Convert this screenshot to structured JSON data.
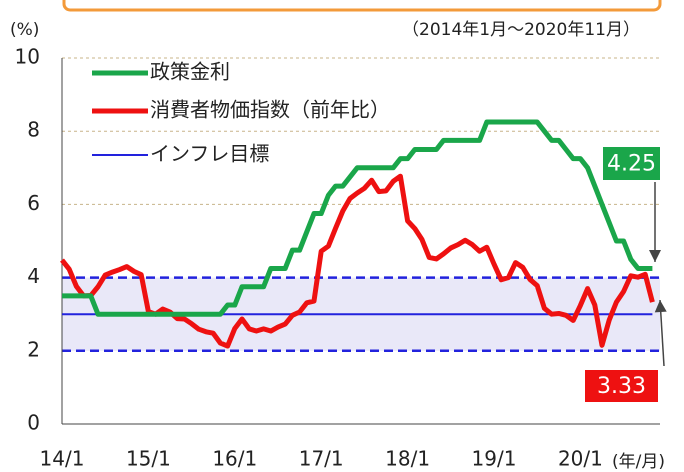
{
  "chart_data": {
    "type": "line",
    "subtitle": "（2014年1月～2020年11月）",
    "y_label": "(%)",
    "x_label": "(年/月)",
    "categories": [
      "14/1",
      null,
      null,
      null,
      null,
      null,
      null,
      null,
      null,
      null,
      null,
      null,
      "15/1",
      null,
      null,
      null,
      null,
      null,
      null,
      null,
      null,
      null,
      null,
      null,
      "16/1",
      null,
      null,
      null,
      null,
      null,
      null,
      null,
      null,
      null,
      null,
      null,
      "17/1",
      null,
      null,
      null,
      null,
      null,
      null,
      null,
      null,
      null,
      null,
      null,
      "18/1",
      null,
      null,
      null,
      null,
      null,
      null,
      null,
      null,
      null,
      null,
      null,
      "19/1",
      null,
      null,
      null,
      null,
      null,
      null,
      null,
      null,
      null,
      null,
      null,
      "20/1",
      null,
      null,
      null,
      null,
      null,
      null,
      null,
      null,
      null,
      null
    ],
    "series": [
      {
        "name": "政策金利",
        "color": "#1aa64a",
        "width": 5,
        "values": [
          3.5,
          3.5,
          3.5,
          3.5,
          3.5,
          3,
          3,
          3,
          3,
          3,
          3,
          3,
          3,
          3,
          3,
          3,
          3,
          3,
          3,
          3,
          3,
          3,
          3,
          3.25,
          3.25,
          3.75,
          3.75,
          3.75,
          3.75,
          4.25,
          4.25,
          4.25,
          4.75,
          4.75,
          5.25,
          5.75,
          5.75,
          6.25,
          6.5,
          6.5,
          6.75,
          7,
          7,
          7,
          7,
          7,
          7,
          7.25,
          7.25,
          7.5,
          7.5,
          7.5,
          7.5,
          7.75,
          7.75,
          7.75,
          7.75,
          7.75,
          7.75,
          8.25,
          8.25,
          8.25,
          8.25,
          8.25,
          8.25,
          8.25,
          8.25,
          8,
          7.75,
          7.75,
          7.5,
          7.25,
          7.25,
          7,
          6.5,
          6,
          5.5,
          5,
          5,
          4.5,
          4.25,
          4.25,
          4.25
        ]
      },
      {
        "name": "消費者物価指数（前年比）",
        "color": "#ee1111",
        "width": 5,
        "values": [
          4.48,
          4.23,
          3.76,
          3.5,
          3.51,
          3.75,
          4.07,
          4.15,
          4.22,
          4.3,
          4.17,
          4.08,
          3.07,
          3,
          3.14,
          3.06,
          2.88,
          2.87,
          2.74,
          2.59,
          2.52,
          2.48,
          2.21,
          2.13,
          2.61,
          2.87,
          2.6,
          2.54,
          2.6,
          2.54,
          2.65,
          2.73,
          2.97,
          3.06,
          3.31,
          3.36,
          4.72,
          4.86,
          5.35,
          5.82,
          6.16,
          6.31,
          6.44,
          6.66,
          6.35,
          6.37,
          6.63,
          6.77,
          5.55,
          5.34,
          5.04,
          4.55,
          4.51,
          4.65,
          4.81,
          4.9,
          5.02,
          4.9,
          4.72,
          4.83,
          4.37,
          3.94,
          4,
          4.41,
          4.28,
          3.95,
          3.78,
          3.16,
          3,
          3.02,
          2.97,
          2.83,
          3.24,
          3.7,
          3.25,
          2.15,
          2.84,
          3.33,
          3.62,
          4.05,
          4.01,
          4.09,
          3.33
        ]
      },
      {
        "name": "インフレ目標",
        "color": "#2222dd",
        "width": 2,
        "values": [
          3,
          3,
          3,
          3,
          3,
          3,
          3,
          3,
          3,
          3,
          3,
          3,
          3,
          3,
          3,
          3,
          3,
          3,
          3,
          3,
          3,
          3,
          3,
          3,
          3,
          3,
          3,
          3,
          3,
          3,
          3,
          3,
          3,
          3,
          3,
          3,
          3,
          3,
          3,
          3,
          3,
          3,
          3,
          3,
          3,
          3,
          3,
          3,
          3,
          3,
          3,
          3,
          3,
          3,
          3,
          3,
          3,
          3,
          3,
          3,
          3,
          3,
          3,
          3,
          3,
          3,
          3,
          3,
          3,
          3,
          3,
          3,
          3,
          3,
          3,
          3,
          3,
          3,
          3,
          3,
          3,
          3,
          3
        ]
      }
    ],
    "target_band": [
      2,
      4
    ],
    "ylim": [
      0,
      10
    ],
    "yticks": [
      0,
      2,
      4,
      6,
      8,
      10
    ],
    "grid": true,
    "annotations": [
      {
        "text": "4.25",
        "color": "#1aa64a"
      },
      {
        "text": "3.33",
        "color": "#ee1111"
      }
    ]
  }
}
